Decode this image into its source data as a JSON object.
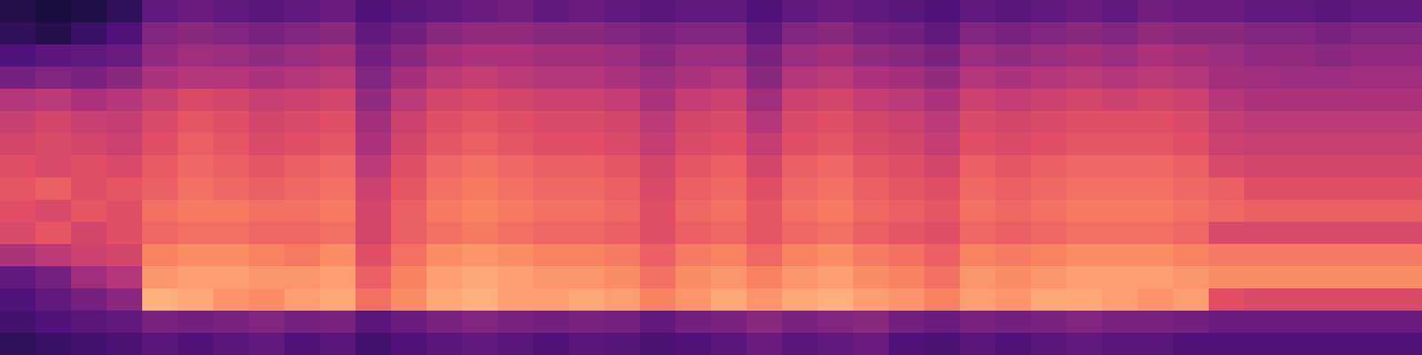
{
  "chart_data": {
    "type": "heatmap",
    "tick_labels": false,
    "grid": false,
    "zlim": [
      0,
      100
    ],
    "cells": [
      [
        15,
        12,
        14,
        18,
        30,
        32,
        30,
        28,
        30,
        32,
        25,
        28,
        30,
        32,
        34,
        30,
        32,
        30,
        28,
        30,
        30,
        25,
        30,
        32,
        30,
        28,
        26,
        30,
        28,
        30,
        32,
        30,
        34,
        32,
        32,
        30,
        30,
        28,
        30,
        30
      ],
      [
        18,
        15,
        20,
        25,
        38,
        40,
        38,
        36,
        38,
        40,
        30,
        34,
        40,
        42,
        42,
        40,
        40,
        38,
        36,
        38,
        38,
        30,
        38,
        40,
        36,
        34,
        30,
        38,
        36,
        38,
        40,
        38,
        42,
        40,
        40,
        38,
        38,
        36,
        38,
        38
      ],
      [
        25,
        28,
        30,
        32,
        42,
        45,
        44,
        42,
        44,
        46,
        34,
        40,
        46,
        48,
        48,
        46,
        46,
        44,
        40,
        44,
        44,
        36,
        44,
        46,
        42,
        40,
        36,
        44,
        42,
        44,
        46,
        44,
        48,
        46,
        44,
        42,
        42,
        40,
        42,
        42
      ],
      [
        35,
        38,
        36,
        40,
        48,
        50,
        50,
        48,
        50,
        52,
        38,
        46,
        52,
        54,
        52,
        50,
        50,
        48,
        44,
        48,
        50,
        40,
        50,
        52,
        48,
        46,
        42,
        50,
        48,
        50,
        52,
        50,
        52,
        50,
        46,
        45,
        44,
        44,
        45,
        45
      ],
      [
        50,
        52,
        48,
        50,
        55,
        60,
        58,
        55,
        56,
        58,
        42,
        52,
        58,
        60,
        58,
        56,
        56,
        54,
        48,
        54,
        56,
        45,
        56,
        58,
        54,
        52,
        48,
        56,
        54,
        56,
        58,
        56,
        58,
        56,
        50,
        48,
        48,
        48,
        48,
        48
      ],
      [
        55,
        58,
        55,
        54,
        60,
        64,
        62,
        58,
        60,
        62,
        46,
        56,
        62,
        64,
        62,
        60,
        60,
        58,
        52,
        58,
        60,
        50,
        60,
        62,
        58,
        56,
        52,
        60,
        58,
        60,
        62,
        62,
        62,
        60,
        54,
        52,
        52,
        52,
        52,
        52
      ],
      [
        58,
        60,
        58,
        56,
        62,
        66,
        64,
        60,
        62,
        64,
        48,
        58,
        64,
        66,
        64,
        62,
        62,
        60,
        54,
        60,
        62,
        54,
        62,
        64,
        60,
        58,
        54,
        62,
        60,
        62,
        64,
        64,
        64,
        62,
        56,
        55,
        55,
        55,
        55,
        55
      ],
      [
        62,
        60,
        62,
        60,
        65,
        68,
        66,
        64,
        66,
        68,
        52,
        62,
        68,
        70,
        68,
        66,
        66,
        64,
        58,
        64,
        66,
        58,
        66,
        68,
        64,
        62,
        58,
        66,
        64,
        66,
        68,
        68,
        68,
        66,
        60,
        58,
        58,
        58,
        58,
        58
      ],
      [
        64,
        66,
        62,
        64,
        66,
        70,
        68,
        66,
        68,
        70,
        56,
        64,
        70,
        72,
        70,
        68,
        68,
        66,
        60,
        66,
        68,
        62,
        68,
        70,
        66,
        64,
        62,
        68,
        66,
        68,
        70,
        70,
        70,
        68,
        66,
        62,
        62,
        62,
        62,
        62
      ],
      [
        62,
        60,
        64,
        62,
        70,
        72,
        72,
        70,
        70,
        72,
        58,
        66,
        72,
        74,
        72,
        70,
        70,
        68,
        62,
        68,
        70,
        64,
        70,
        72,
        68,
        66,
        64,
        70,
        68,
        70,
        72,
        72,
        72,
        70,
        68,
        66,
        66,
        66,
        66,
        66
      ],
      [
        60,
        64,
        58,
        62,
        68,
        70,
        70,
        68,
        68,
        70,
        58,
        66,
        70,
        72,
        70,
        68,
        68,
        66,
        62,
        66,
        68,
        64,
        68,
        70,
        66,
        64,
        62,
        68,
        66,
        68,
        70,
        70,
        70,
        68,
        60,
        60,
        60,
        60,
        60,
        60
      ],
      [
        48,
        52,
        56,
        58,
        74,
        76,
        76,
        74,
        72,
        76,
        62,
        70,
        76,
        78,
        76,
        74,
        74,
        72,
        66,
        72,
        74,
        68,
        74,
        76,
        72,
        70,
        66,
        74,
        72,
        74,
        76,
        76,
        76,
        74,
        72,
        72,
        72,
        72,
        72,
        72
      ],
      [
        30,
        35,
        45,
        50,
        78,
        80,
        80,
        78,
        78,
        80,
        66,
        74,
        80,
        82,
        80,
        78,
        78,
        76,
        70,
        76,
        78,
        74,
        78,
        80,
        76,
        74,
        70,
        78,
        76,
        78,
        80,
        80,
        80,
        78,
        76,
        76,
        76,
        76,
        76,
        76
      ],
      [
        25,
        30,
        35,
        40,
        84,
        82,
        78,
        76,
        80,
        82,
        70,
        76,
        82,
        84,
        80,
        80,
        82,
        80,
        74,
        78,
        82,
        78,
        82,
        84,
        80,
        78,
        74,
        80,
        78,
        82,
        82,
        80,
        78,
        80,
        62,
        60,
        60,
        60,
        60,
        60
      ],
      [
        22,
        25,
        28,
        30,
        36,
        34,
        36,
        38,
        35,
        36,
        28,
        32,
        36,
        38,
        36,
        34,
        36,
        35,
        30,
        34,
        36,
        40,
        36,
        38,
        40,
        34,
        32,
        36,
        34,
        36,
        38,
        36,
        36,
        34,
        32,
        32,
        32,
        32,
        32,
        32
      ],
      [
        18,
        20,
        22,
        24,
        28,
        26,
        28,
        30,
        26,
        28,
        22,
        26,
        28,
        30,
        28,
        26,
        28,
        27,
        24,
        26,
        28,
        32,
        28,
        30,
        32,
        26,
        24,
        28,
        26,
        28,
        30,
        28,
        28,
        26,
        26,
        26,
        26,
        26,
        26,
        26
      ]
    ]
  }
}
